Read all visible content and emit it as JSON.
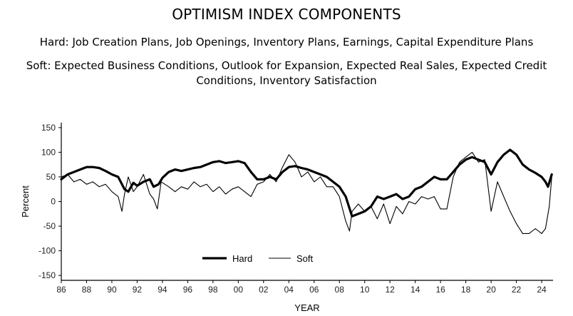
{
  "chart_data": {
    "type": "line",
    "title": "OPTIMISM INDEX COMPONENTS",
    "subtitle_hard": "Hard: Job Creation Plans, Job Openings, Inventory Plans, Earnings, Capital Expenditure Plans",
    "subtitle_soft": "Soft: Expected Business Conditions, Outlook for Expansion, Expected Real Sales, Expected Credit Conditions, Inventory Satisfaction",
    "xlabel": "YEAR",
    "ylabel": "Percent",
    "xlim": [
      1986,
      2024.9
    ],
    "ylim": [
      -160,
      160
    ],
    "y_ticks": [
      150,
      100,
      50,
      0,
      -50,
      -100,
      -150
    ],
    "x_ticks": [
      1986,
      1988,
      1990,
      1992,
      1994,
      1996,
      1998,
      2000,
      2002,
      2004,
      2006,
      2008,
      2010,
      2012,
      2014,
      2016,
      2018,
      2020,
      2022,
      2024
    ],
    "x_tick_labels": [
      "86",
      "88",
      "90",
      "92",
      "94",
      "96",
      "98",
      "00",
      "02",
      "04",
      "06",
      "08",
      "10",
      "12",
      "14",
      "16",
      "18",
      "20",
      "22",
      "24"
    ],
    "legend": {
      "position": "lower-center",
      "entries": [
        "Hard",
        "Soft"
      ]
    },
    "series": [
      {
        "name": "Hard",
        "style": "thick",
        "points": [
          [
            1986.0,
            45
          ],
          [
            1986.5,
            55
          ],
          [
            1987.0,
            60
          ],
          [
            1987.5,
            65
          ],
          [
            1988.0,
            70
          ],
          [
            1988.5,
            70
          ],
          [
            1989.0,
            68
          ],
          [
            1989.5,
            62
          ],
          [
            1990.0,
            55
          ],
          [
            1990.5,
            50
          ],
          [
            1991.0,
            25
          ],
          [
            1991.3,
            20
          ],
          [
            1991.7,
            38
          ],
          [
            1992.0,
            32
          ],
          [
            1992.5,
            40
          ],
          [
            1993.0,
            45
          ],
          [
            1993.3,
            30
          ],
          [
            1993.7,
            35
          ],
          [
            1994.0,
            48
          ],
          [
            1994.5,
            60
          ],
          [
            1995.0,
            65
          ],
          [
            1995.5,
            62
          ],
          [
            1996.0,
            65
          ],
          [
            1996.5,
            68
          ],
          [
            1997.0,
            70
          ],
          [
            1997.5,
            75
          ],
          [
            1998.0,
            80
          ],
          [
            1998.5,
            82
          ],
          [
            1999.0,
            78
          ],
          [
            1999.5,
            80
          ],
          [
            2000.0,
            82
          ],
          [
            2000.5,
            78
          ],
          [
            2001.0,
            60
          ],
          [
            2001.5,
            45
          ],
          [
            2002.0,
            45
          ],
          [
            2002.5,
            50
          ],
          [
            2003.0,
            45
          ],
          [
            2003.5,
            60
          ],
          [
            2004.0,
            70
          ],
          [
            2004.5,
            72
          ],
          [
            2005.0,
            68
          ],
          [
            2005.5,
            65
          ],
          [
            2006.0,
            60
          ],
          [
            2006.5,
            55
          ],
          [
            2007.0,
            50
          ],
          [
            2007.5,
            40
          ],
          [
            2008.0,
            30
          ],
          [
            2008.5,
            10
          ],
          [
            2009.0,
            -30
          ],
          [
            2009.5,
            -25
          ],
          [
            2010.0,
            -20
          ],
          [
            2010.5,
            -10
          ],
          [
            2011.0,
            10
          ],
          [
            2011.5,
            5
          ],
          [
            2012.0,
            10
          ],
          [
            2012.5,
            15
          ],
          [
            2013.0,
            5
          ],
          [
            2013.5,
            10
          ],
          [
            2014.0,
            25
          ],
          [
            2014.5,
            30
          ],
          [
            2015.0,
            40
          ],
          [
            2015.5,
            50
          ],
          [
            2016.0,
            45
          ],
          [
            2016.5,
            45
          ],
          [
            2017.0,
            60
          ],
          [
            2017.5,
            75
          ],
          [
            2018.0,
            85
          ],
          [
            2018.5,
            90
          ],
          [
            2019.0,
            85
          ],
          [
            2019.5,
            80
          ],
          [
            2020.0,
            55
          ],
          [
            2020.5,
            80
          ],
          [
            2021.0,
            95
          ],
          [
            2021.5,
            105
          ],
          [
            2022.0,
            95
          ],
          [
            2022.5,
            75
          ],
          [
            2023.0,
            65
          ],
          [
            2023.5,
            58
          ],
          [
            2024.0,
            50
          ],
          [
            2024.3,
            40
          ],
          [
            2024.5,
            30
          ],
          [
            2024.8,
            55
          ]
        ]
      },
      {
        "name": "Soft",
        "style": "thin",
        "points": [
          [
            1986.0,
            50
          ],
          [
            1986.5,
            55
          ],
          [
            1987.0,
            40
          ],
          [
            1987.5,
            45
          ],
          [
            1988.0,
            35
          ],
          [
            1988.5,
            40
          ],
          [
            1989.0,
            30
          ],
          [
            1989.5,
            35
          ],
          [
            1990.0,
            20
          ],
          [
            1990.5,
            10
          ],
          [
            1990.8,
            -20
          ],
          [
            1991.0,
            15
          ],
          [
            1991.3,
            50
          ],
          [
            1991.7,
            20
          ],
          [
            1992.0,
            30
          ],
          [
            1992.5,
            55
          ],
          [
            1993.0,
            15
          ],
          [
            1993.3,
            5
          ],
          [
            1993.6,
            -15
          ],
          [
            1993.9,
            40
          ],
          [
            1994.5,
            30
          ],
          [
            1995.0,
            20
          ],
          [
            1995.5,
            30
          ],
          [
            1996.0,
            25
          ],
          [
            1996.5,
            40
          ],
          [
            1997.0,
            30
          ],
          [
            1997.5,
            35
          ],
          [
            1998.0,
            20
          ],
          [
            1998.5,
            30
          ],
          [
            1999.0,
            15
          ],
          [
            1999.5,
            25
          ],
          [
            2000.0,
            30
          ],
          [
            2000.5,
            20
          ],
          [
            2001.0,
            10
          ],
          [
            2001.5,
            35
          ],
          [
            2002.0,
            40
          ],
          [
            2002.5,
            55
          ],
          [
            2003.0,
            40
          ],
          [
            2003.5,
            70
          ],
          [
            2004.0,
            95
          ],
          [
            2004.5,
            80
          ],
          [
            2005.0,
            50
          ],
          [
            2005.5,
            60
          ],
          [
            2006.0,
            40
          ],
          [
            2006.5,
            50
          ],
          [
            2007.0,
            30
          ],
          [
            2007.5,
            30
          ],
          [
            2008.0,
            10
          ],
          [
            2008.5,
            -40
          ],
          [
            2008.8,
            -60
          ],
          [
            2009.0,
            -20
          ],
          [
            2009.5,
            -5
          ],
          [
            2010.0,
            -20
          ],
          [
            2010.5,
            -10
          ],
          [
            2011.0,
            -35
          ],
          [
            2011.5,
            -5
          ],
          [
            2012.0,
            -45
          ],
          [
            2012.5,
            -10
          ],
          [
            2013.0,
            -25
          ],
          [
            2013.5,
            0
          ],
          [
            2014.0,
            -5
          ],
          [
            2014.5,
            10
          ],
          [
            2015.0,
            5
          ],
          [
            2015.5,
            10
          ],
          [
            2016.0,
            -15
          ],
          [
            2016.5,
            -15
          ],
          [
            2017.0,
            50
          ],
          [
            2017.5,
            80
          ],
          [
            2018.0,
            90
          ],
          [
            2018.5,
            100
          ],
          [
            2019.0,
            80
          ],
          [
            2019.5,
            85
          ],
          [
            2020.0,
            -20
          ],
          [
            2020.5,
            40
          ],
          [
            2021.0,
            10
          ],
          [
            2021.5,
            -20
          ],
          [
            2022.0,
            -45
          ],
          [
            2022.5,
            -65
          ],
          [
            2023.0,
            -65
          ],
          [
            2023.5,
            -55
          ],
          [
            2024.0,
            -65
          ],
          [
            2024.3,
            -55
          ],
          [
            2024.6,
            -10
          ],
          [
            2024.8,
            50
          ]
        ]
      }
    ]
  }
}
